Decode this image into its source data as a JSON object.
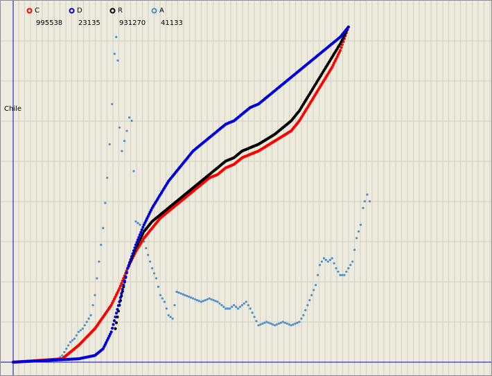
{
  "chart_data": {
    "type": "line",
    "title": "Chile",
    "xlabel": "",
    "ylabel": "",
    "grid": true,
    "legend_placement": "top-left",
    "series": [
      {
        "name": "C",
        "color": "#ff0000",
        "marker": "circle",
        "value": "995538",
        "points": [
          [
            0,
            0
          ],
          [
            60,
            0.01
          ],
          [
            80,
            0.05
          ],
          [
            100,
            0.1
          ],
          [
            120,
            0.17
          ],
          [
            130,
            0.22
          ],
          [
            140,
            0.28
          ],
          [
            150,
            0.33
          ],
          [
            160,
            0.37
          ],
          [
            170,
            0.4
          ],
          [
            180,
            0.43
          ],
          [
            190,
            0.45
          ],
          [
            200,
            0.47
          ],
          [
            210,
            0.49
          ],
          [
            220,
            0.51
          ],
          [
            230,
            0.53
          ],
          [
            240,
            0.55
          ],
          [
            250,
            0.56
          ],
          [
            260,
            0.58
          ],
          [
            270,
            0.59
          ],
          [
            280,
            0.61
          ],
          [
            290,
            0.62
          ],
          [
            300,
            0.63
          ],
          [
            320,
            0.66
          ],
          [
            340,
            0.69
          ],
          [
            350,
            0.72
          ],
          [
            360,
            0.76
          ],
          [
            370,
            0.8
          ],
          [
            380,
            0.84
          ],
          [
            390,
            0.88
          ],
          [
            400,
            0.93
          ],
          [
            410,
            1.0
          ]
        ]
      },
      {
        "name": "D",
        "color": "#0000dd",
        "marker": "circle",
        "value": "23135",
        "points": [
          [
            0,
            0
          ],
          [
            80,
            0.01
          ],
          [
            100,
            0.02
          ],
          [
            110,
            0.04
          ],
          [
            120,
            0.09
          ],
          [
            130,
            0.18
          ],
          [
            140,
            0.28
          ],
          [
            150,
            0.35
          ],
          [
            160,
            0.41
          ],
          [
            170,
            0.46
          ],
          [
            180,
            0.5
          ],
          [
            190,
            0.54
          ],
          [
            200,
            0.57
          ],
          [
            210,
            0.6
          ],
          [
            220,
            0.63
          ],
          [
            230,
            0.65
          ],
          [
            240,
            0.67
          ],
          [
            250,
            0.69
          ],
          [
            260,
            0.71
          ],
          [
            270,
            0.72
          ],
          [
            280,
            0.74
          ],
          [
            290,
            0.76
          ],
          [
            300,
            0.77
          ],
          [
            310,
            0.79
          ],
          [
            320,
            0.81
          ],
          [
            330,
            0.83
          ],
          [
            340,
            0.85
          ],
          [
            350,
            0.87
          ],
          [
            360,
            0.89
          ],
          [
            370,
            0.91
          ],
          [
            380,
            0.93
          ],
          [
            390,
            0.95
          ],
          [
            400,
            0.97
          ],
          [
            410,
            1.0
          ]
        ]
      },
      {
        "name": "R",
        "color": "#000000",
        "marker": "circle",
        "value": "931270",
        "points": [
          [
            125,
            0.1
          ],
          [
            130,
            0.17
          ],
          [
            140,
            0.28
          ],
          [
            150,
            0.34
          ],
          [
            160,
            0.39
          ],
          [
            170,
            0.42
          ],
          [
            180,
            0.44
          ],
          [
            190,
            0.46
          ],
          [
            200,
            0.48
          ],
          [
            210,
            0.5
          ],
          [
            220,
            0.52
          ],
          [
            230,
            0.54
          ],
          [
            240,
            0.56
          ],
          [
            250,
            0.58
          ],
          [
            260,
            0.6
          ],
          [
            270,
            0.61
          ],
          [
            280,
            0.63
          ],
          [
            290,
            0.64
          ],
          [
            300,
            0.65
          ],
          [
            320,
            0.68
          ],
          [
            330,
            0.7
          ],
          [
            340,
            0.72
          ],
          [
            350,
            0.75
          ],
          [
            360,
            0.79
          ],
          [
            370,
            0.83
          ],
          [
            380,
            0.87
          ],
          [
            390,
            0.91
          ],
          [
            400,
            0.95
          ],
          [
            410,
            1.0
          ]
        ]
      },
      {
        "name": "A",
        "color": "#4d8fcc",
        "marker": "circle",
        "value": "41133",
        "points": [
          [
            50,
            0
          ],
          [
            60,
            0.02
          ],
          [
            65,
            0.04
          ],
          [
            70,
            0.06
          ],
          [
            75,
            0.07
          ],
          [
            80,
            0.09
          ],
          [
            85,
            0.1
          ],
          [
            90,
            0.12
          ],
          [
            95,
            0.14
          ],
          [
            100,
            0.2
          ],
          [
            105,
            0.3
          ],
          [
            110,
            0.4
          ],
          [
            115,
            0.55
          ],
          [
            118,
            0.65
          ],
          [
            121,
            0.77
          ],
          [
            124,
            0.92
          ],
          [
            126,
            0.97
          ],
          [
            128,
            0.9
          ],
          [
            130,
            0.7
          ],
          [
            133,
            0.63
          ],
          [
            136,
            0.66
          ],
          [
            139,
            0.69
          ],
          [
            142,
            0.73
          ],
          [
            145,
            0.72
          ],
          [
            150,
            0.42
          ],
          [
            155,
            0.41
          ],
          [
            160,
            0.36
          ],
          [
            165,
            0.32
          ],
          [
            170,
            0.28
          ],
          [
            175,
            0.25
          ],
          [
            180,
            0.2
          ],
          [
            185,
            0.18
          ],
          [
            190,
            0.14
          ],
          [
            195,
            0.13
          ],
          [
            200,
            0.21
          ],
          [
            210,
            0.2
          ],
          [
            220,
            0.19
          ],
          [
            230,
            0.18
          ],
          [
            240,
            0.19
          ],
          [
            250,
            0.18
          ],
          [
            255,
            0.17
          ],
          [
            260,
            0.16
          ],
          [
            265,
            0.16
          ],
          [
            270,
            0.17
          ],
          [
            275,
            0.16
          ],
          [
            280,
            0.17
          ],
          [
            285,
            0.18
          ],
          [
            290,
            0.16
          ],
          [
            300,
            0.11
          ],
          [
            310,
            0.12
          ],
          [
            320,
            0.11
          ],
          [
            330,
            0.12
          ],
          [
            340,
            0.11
          ],
          [
            350,
            0.12
          ],
          [
            355,
            0.14
          ],
          [
            360,
            0.17
          ],
          [
            370,
            0.23
          ],
          [
            375,
            0.29
          ],
          [
            380,
            0.31
          ],
          [
            385,
            0.3
          ],
          [
            390,
            0.31
          ],
          [
            395,
            0.28
          ],
          [
            400,
            0.26
          ],
          [
            405,
            0.26
          ],
          [
            410,
            0.28
          ],
          [
            415,
            0.3
          ],
          [
            420,
            0.37
          ],
          [
            425,
            0.41
          ],
          [
            428,
            0.46
          ],
          [
            430,
            0.48
          ],
          [
            433,
            0.5
          ],
          [
            436,
            0.48
          ]
        ]
      }
    ]
  }
}
